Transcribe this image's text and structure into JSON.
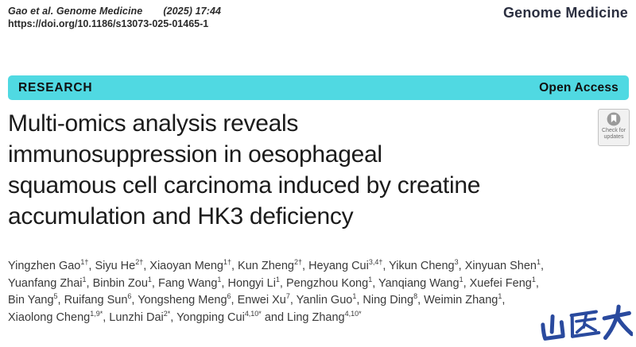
{
  "header": {
    "citation": "Gao et al. Genome Medicine",
    "issue": "(2025) 17:44",
    "doi": "https://doi.org/10.1186/s13073-025-01465-1",
    "journal": "Genome Medicine"
  },
  "banner": {
    "article_type": "RESEARCH",
    "access": "Open Access",
    "color": "#50d9e2"
  },
  "badge": {
    "line1": "Check for",
    "line2": "updates",
    "icon": "crossmark-bookmark-circle"
  },
  "title": {
    "text": "Multi-omics analysis reveals immunosuppression in oesophageal squamous cell carcinoma induced by creatine accumulation and HK3 deficiency",
    "lines": [
      "Multi-omics analysis reveals",
      "immunosuppression in oesophageal",
      "squamous cell carcinoma induced by creatine",
      "accumulation and HK3 deficiency"
    ]
  },
  "authors": {
    "lines": [
      [
        {
          "name": "Yingzhen Gao",
          "sup": "1†",
          "tail": ", "
        },
        {
          "name": "Siyu He",
          "sup": "2†",
          "tail": ", "
        },
        {
          "name": "Xiaoyan Meng",
          "sup": "1†",
          "tail": ", "
        },
        {
          "name": "Kun Zheng",
          "sup": "2†",
          "tail": ", "
        },
        {
          "name": "Heyang Cui",
          "sup": "3,4†",
          "tail": ", "
        },
        {
          "name": "Yikun Cheng",
          "sup": "3",
          "tail": ", "
        },
        {
          "name": "Xinyuan Shen",
          "sup": "1",
          "tail": ","
        }
      ],
      [
        {
          "name": "Yuanfang Zhai",
          "sup": "1",
          "tail": ", "
        },
        {
          "name": "Binbin Zou",
          "sup": "1",
          "tail": ", "
        },
        {
          "name": "Fang Wang",
          "sup": "1",
          "tail": ", "
        },
        {
          "name": "Hongyi Li",
          "sup": "1",
          "tail": ", "
        },
        {
          "name": "Pengzhou Kong",
          "sup": "1",
          "tail": ", "
        },
        {
          "name": "Yanqiang Wang",
          "sup": "1",
          "tail": ", "
        },
        {
          "name": "Xuefei Feng",
          "sup": "1",
          "tail": ","
        }
      ],
      [
        {
          "name": "Bin Yang",
          "sup": "5",
          "tail": ", "
        },
        {
          "name": "Ruifang Sun",
          "sup": "6",
          "tail": ", "
        },
        {
          "name": "Yongsheng Meng",
          "sup": "6",
          "tail": ", "
        },
        {
          "name": "Enwei Xu",
          "sup": "7",
          "tail": ", "
        },
        {
          "name": "Yanlin Guo",
          "sup": "1",
          "tail": ", "
        },
        {
          "name": "Ning Ding",
          "sup": "8",
          "tail": ", "
        },
        {
          "name": "Weimin Zhang",
          "sup": "1",
          "tail": ","
        }
      ],
      [
        {
          "name": "Xiaolong Cheng",
          "sup": "1,9*",
          "tail": ", "
        },
        {
          "name": "Lunzhi Dai",
          "sup": "2*",
          "tail": ", "
        },
        {
          "name": "Yongping Cui",
          "sup": "4,10*",
          "tail": ""
        },
        {
          "lead": " and ",
          "name": "Ling Zhang",
          "sup": "4,10*",
          "tail": ""
        }
      ]
    ]
  },
  "watermark": {
    "text": "山医大",
    "color": "#2a4a9e"
  }
}
